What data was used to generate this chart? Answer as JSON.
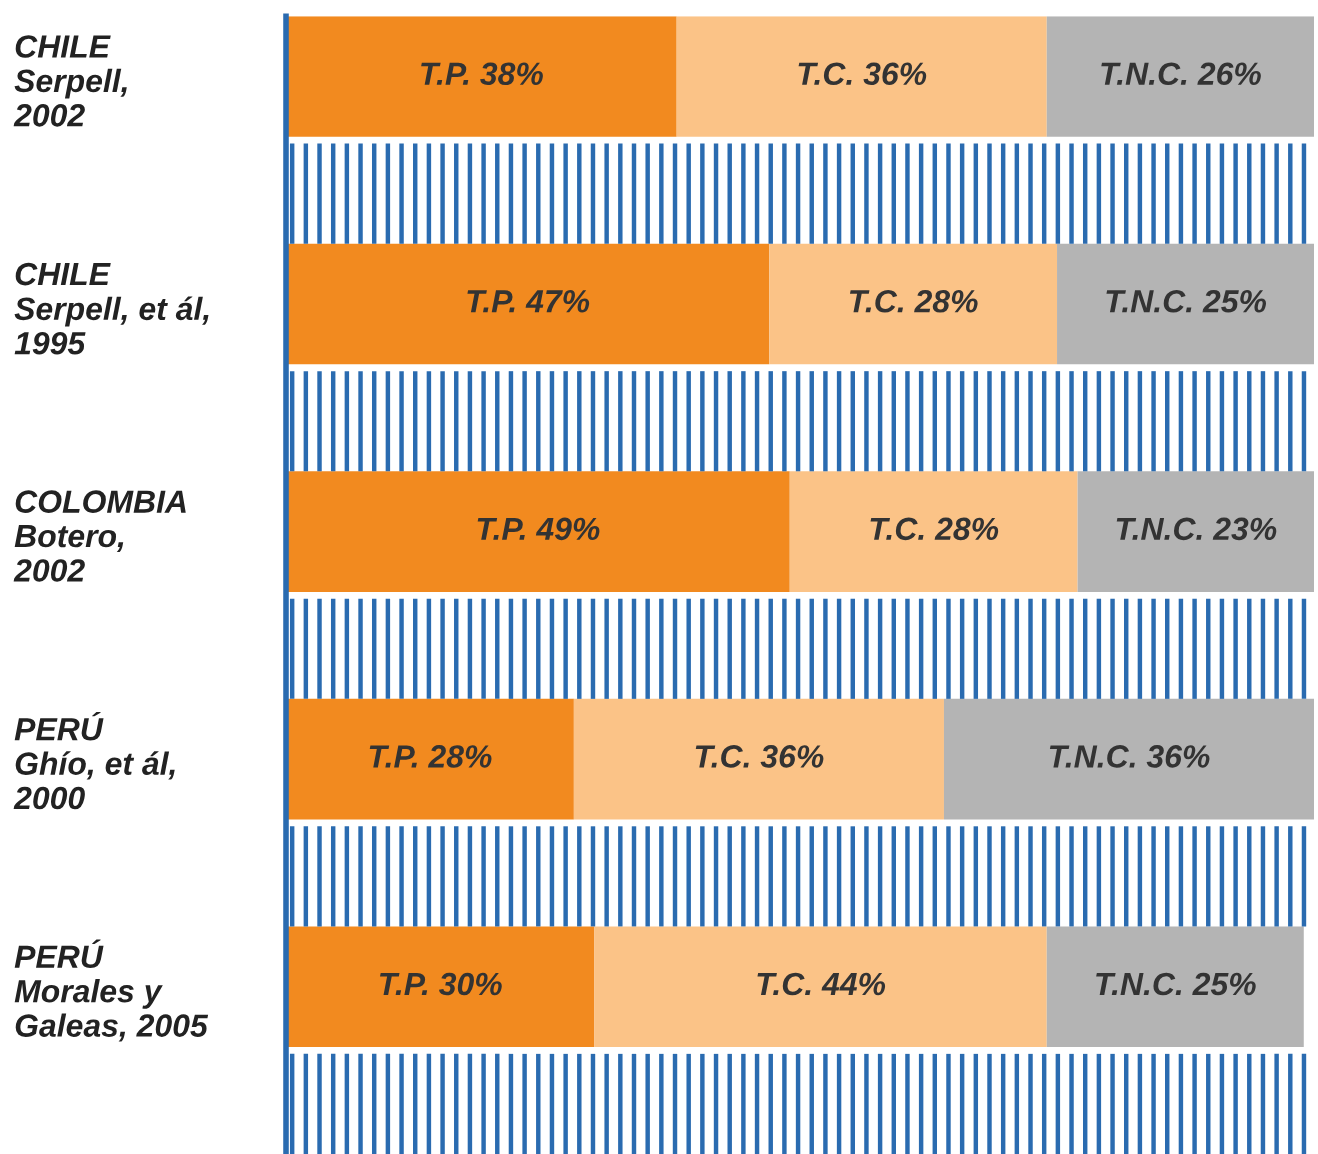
{
  "chart_data": {
    "type": "bar",
    "orientation": "horizontal",
    "stacked": true,
    "categories": [
      "CHILE\nSerpell,\n2002",
      "CHILE\nSerpell, et ál,\n1995",
      "COLOMBIA\nBotero,\n2002",
      "PERÚ\nGhío, et ál,\n2000",
      "PERÚ\nMorales y\nGaleas, 2005"
    ],
    "series": [
      {
        "color": "#f28a1f",
        "values": [
          38,
          47,
          49,
          28,
          30
        ],
        "value_labels": [
          "T.P. 38%",
          "T.P. 47%",
          "T.P. 49%",
          "T.P. 28%",
          "T.P. 30%"
        ]
      },
      {
        "color": "#fbc387",
        "values": [
          36,
          28,
          28,
          36,
          44
        ],
        "value_labels": [
          "T.C. 36%",
          "T.C. 28%",
          "T.C. 28%",
          "T.C. 36%",
          "T.C. 44%"
        ]
      },
      {
        "color": "#b4b4b4",
        "values": [
          26,
          25,
          23,
          36,
          25
        ],
        "value_labels": [
          "T.N.C. 26%",
          "T.N.C. 25%",
          "T.N.C. 23%",
          "T.N.C. 36%",
          "T.N.C. 25%"
        ]
      }
    ],
    "xlim": [
      0,
      100
    ],
    "tick_labels": "y",
    "grid": false,
    "legend": false
  }
}
